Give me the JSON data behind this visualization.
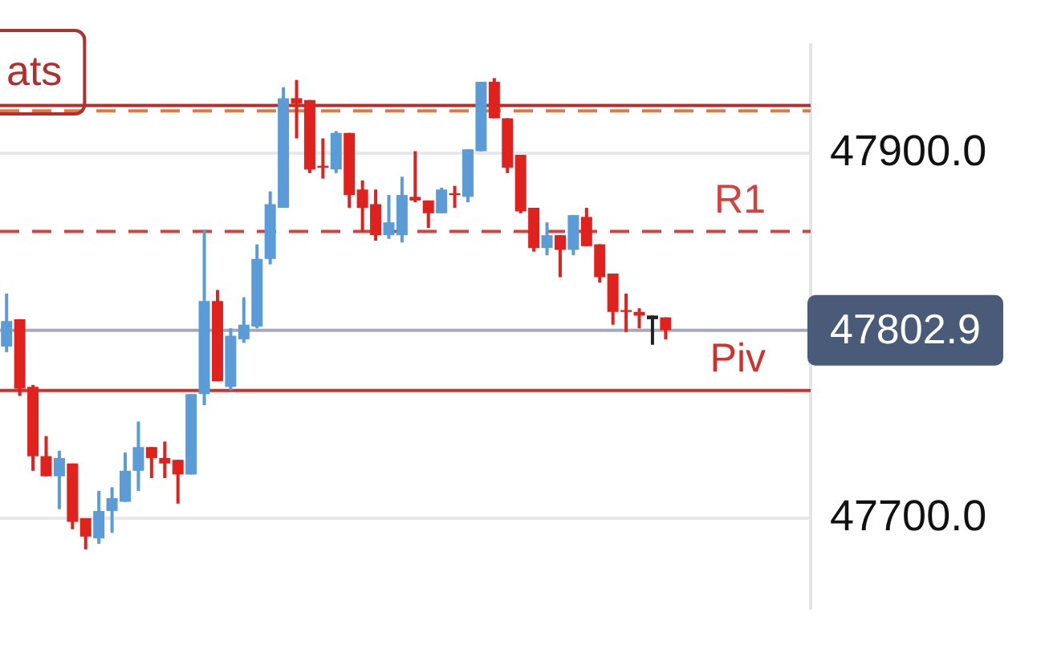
{
  "chart_data": {
    "type": "candlestick",
    "categories": [
      null,
      null,
      null,
      null,
      null,
      null,
      null,
      null,
      null,
      null,
      null,
      null,
      null,
      null,
      null,
      null,
      null,
      null,
      null,
      null,
      null,
      null,
      null,
      null,
      null,
      null,
      null,
      null,
      null,
      null,
      null,
      null,
      null,
      null,
      null,
      null,
      null,
      null,
      null,
      null,
      null,
      null,
      null,
      null,
      null,
      null,
      null,
      null,
      null,
      null,
      null
    ],
    "ohlc": [
      [
        47794,
        47823,
        47791,
        47808
      ],
      [
        47809,
        47809,
        47767,
        47771
      ],
      [
        47772,
        47773,
        47726,
        47734
      ],
      [
        47734,
        47745,
        47723,
        47723
      ],
      [
        47723,
        47737,
        47705,
        47733
      ],
      [
        47730,
        47730,
        47694,
        47698
      ],
      [
        47700,
        47700,
        47683,
        47690
      ],
      [
        47689,
        47715,
        47686,
        47704
      ],
      [
        47704,
        47717,
        47692,
        47711
      ],
      [
        47709,
        47736,
        47709,
        47726
      ],
      [
        47726,
        47753,
        47715,
        47739
      ],
      [
        47739,
        47739,
        47722,
        47733
      ],
      [
        47733,
        47742,
        47722,
        47730
      ],
      [
        47732,
        47732,
        47708,
        47724
      ],
      [
        47724,
        47768,
        47724,
        47768
      ],
      [
        47768,
        47858,
        47762,
        47819
      ],
      [
        47819,
        47825,
        47775,
        47775
      ],
      [
        47772,
        47804,
        47770,
        47800
      ],
      [
        47798,
        47821,
        47796,
        47806
      ],
      [
        47805,
        47850,
        47804,
        47842
      ],
      [
        47842,
        47879,
        47839,
        47872
      ],
      [
        47870,
        47936,
        47870,
        47930
      ],
      [
        47930,
        47940,
        47908,
        47927
      ],
      [
        47929,
        47929,
        47889,
        47891
      ],
      [
        47893,
        47908,
        47886,
        47892
      ],
      [
        47891,
        47912,
        47889,
        47911
      ],
      [
        47911,
        47911,
        47870,
        47877
      ],
      [
        47880,
        47885,
        47857,
        47870
      ],
      [
        47872,
        47880,
        47852,
        47855
      ],
      [
        47855,
        47877,
        47853,
        47862
      ],
      [
        47855,
        47887,
        47851,
        47877
      ],
      [
        47876,
        47901,
        47873,
        47874
      ],
      [
        47874,
        47874,
        47859,
        47867
      ],
      [
        47867,
        47881,
        47867,
        47880
      ],
      [
        47878,
        47882,
        47870,
        47877
      ],
      [
        47876,
        47902,
        47873,
        47902
      ],
      [
        47901,
        47939,
        47901,
        47939
      ],
      [
        47939,
        47941,
        47919,
        47919
      ],
      [
        47919,
        47919,
        47889,
        47892
      ],
      [
        47899,
        47899,
        47867,
        47868
      ],
      [
        47870,
        47870,
        47846,
        47848
      ],
      [
        47848,
        47862,
        47844,
        47855
      ],
      [
        47855,
        47855,
        47832,
        47847
      ],
      [
        47847,
        47866,
        47844,
        47866
      ],
      [
        47865,
        47870,
        47849,
        47849
      ],
      [
        47850,
        47850,
        47829,
        47832
      ],
      [
        47834,
        47834,
        47806,
        47813
      ],
      [
        47814,
        47823,
        47802,
        47813
      ],
      [
        47813,
        47815,
        47804,
        47811
      ],
      [
        47811,
        47811,
        47795,
        47809
      ],
      [
        47810,
        47810,
        47798,
        47803
      ]
    ],
    "colors": [
      "#5b9bd8",
      "#e0211d",
      "#e0211d",
      "#e0211d",
      "#5b9bd8",
      "#e0211d",
      "#e0211d",
      "#5b9bd8",
      "#5b9bd8",
      "#5b9bd8",
      "#5b9bd8",
      "#e0211d",
      "#e0211d",
      "#e0211d",
      "#5b9bd8",
      "#5b9bd8",
      "#e0211d",
      "#5b9bd8",
      "#5b9bd8",
      "#5b9bd8",
      "#5b9bd8",
      "#5b9bd8",
      "#e0211d",
      "#e0211d",
      "#e0211d",
      "#5b9bd8",
      "#e0211d",
      "#e0211d",
      "#e0211d",
      "#5b9bd8",
      "#5b9bd8",
      "#e0211d",
      "#e0211d",
      "#5b9bd8",
      "#e0211d",
      "#5b9bd8",
      "#5b9bd8",
      "#e0211d",
      "#e0211d",
      "#e0211d",
      "#e0211d",
      "#5b9bd8",
      "#e0211d",
      "#5b9bd8",
      "#e0211d",
      "#e0211d",
      "#e0211d",
      "#e0211d",
      "#e0211d",
      "#222222",
      "#e0211d"
    ],
    "ylim": [
      47651,
      47959
    ],
    "yticks": [
      {
        "value": 47900,
        "label": "47900.0"
      },
      {
        "value": 47700,
        "label": "47700.0"
      }
    ],
    "grid": "y",
    "tick_labels": "y",
    "ref_lines": [
      {
        "axis": "y",
        "value": 47926,
        "color": "#b0302f",
        "line_style": "solid"
      },
      {
        "axis": "y",
        "value": 47923,
        "color": "#e07b39",
        "line_style": "dashed"
      },
      {
        "axis": "y",
        "value": 47857,
        "label": "R1",
        "color": "#d9403a",
        "line_style": "dashed"
      },
      {
        "axis": "y",
        "value": 47802.9,
        "label": "47802.9",
        "color": "#a3abb8",
        "line_style": "solid"
      },
      {
        "axis": "y",
        "value": 47770,
        "label": "Piv",
        "color": "#d3302c",
        "line_style": "solid"
      }
    ],
    "annotations": [
      "ats"
    ]
  }
}
